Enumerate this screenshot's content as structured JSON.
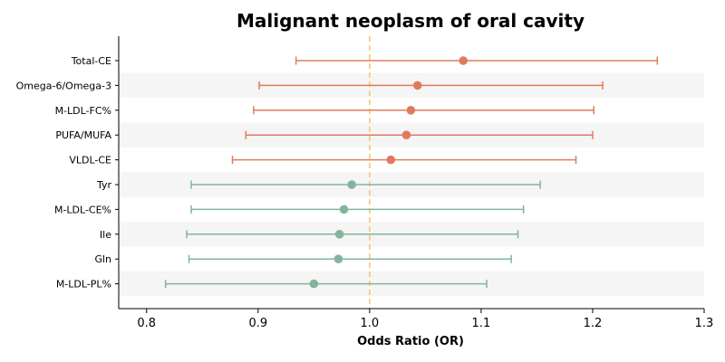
{
  "chart_data": {
    "type": "forest",
    "title": "Malignant neoplasm of oral cavity",
    "xlabel": "Odds Ratio (OR)",
    "xlim": [
      0.775,
      1.3
    ],
    "xticks": [
      "0.8",
      "0.9",
      "1.0",
      "1.1",
      "1.2",
      "1.3"
    ],
    "reference_line": 1.0,
    "colors": {
      "positive": "#e07b5f",
      "negative": "#82b59c",
      "reference": "#f2c46d",
      "band": "#f5f5f5"
    },
    "rows": [
      {
        "label": "Total-CE",
        "or": 1.084,
        "lower": 0.934,
        "upper": 1.258
      },
      {
        "label": "Omega-6/Omega-3",
        "or": 1.043,
        "lower": 0.901,
        "upper": 1.209
      },
      {
        "label": "M-LDL-FC%",
        "or": 1.037,
        "lower": 0.896,
        "upper": 1.201
      },
      {
        "label": "PUFA/MUFA",
        "or": 1.033,
        "lower": 0.889,
        "upper": 1.2
      },
      {
        "label": "VLDL-CE",
        "or": 1.019,
        "lower": 0.877,
        "upper": 1.185
      },
      {
        "label": "Tyr",
        "or": 0.984,
        "lower": 0.84,
        "upper": 1.153
      },
      {
        "label": "M-LDL-CE%",
        "or": 0.977,
        "lower": 0.84,
        "upper": 1.138
      },
      {
        "label": "Ile",
        "or": 0.973,
        "lower": 0.836,
        "upper": 1.133
      },
      {
        "label": "Gln",
        "or": 0.972,
        "lower": 0.838,
        "upper": 1.127
      },
      {
        "label": "M-LDL-PL%",
        "or": 0.95,
        "lower": 0.817,
        "upper": 1.105
      }
    ]
  }
}
